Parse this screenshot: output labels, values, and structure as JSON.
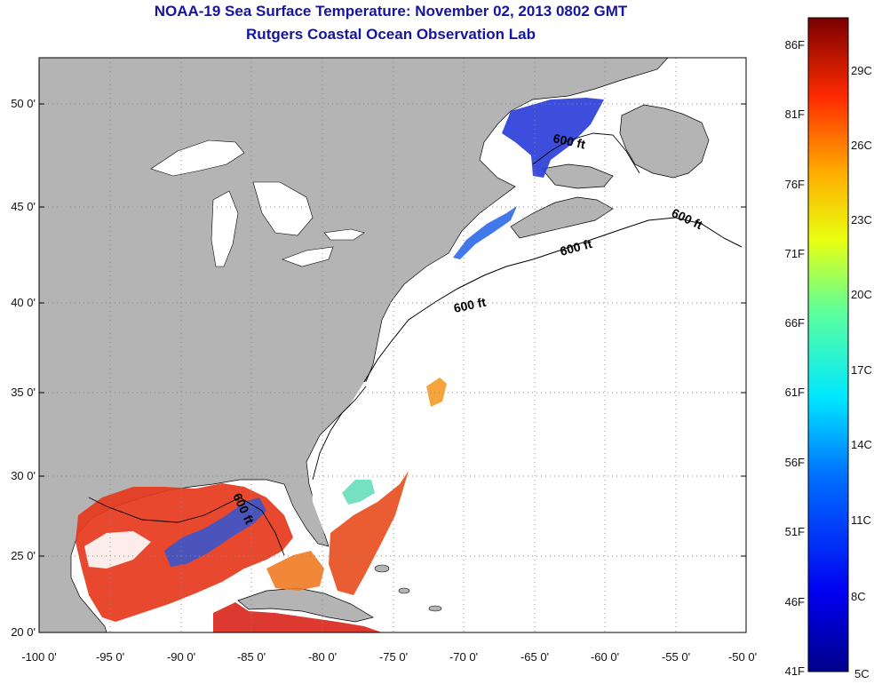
{
  "header": {
    "title": "NOAA-19 Sea Surface Temperature:  November 02, 2013 0802 GMT",
    "subtitle": "Rutgers Coastal Ocean Observation Lab"
  },
  "axes": {
    "lon_labels": [
      "-100 0'",
      "-95 0'",
      "-90 0'",
      "-85 0'",
      "-80 0'",
      "-75 0'",
      "-70 0'",
      "-65 0'",
      "-60 0'",
      "-55 0'",
      "-50 0'"
    ],
    "lat_labels": [
      "50 0'",
      "45 0'",
      "40 0'",
      "35 0'",
      "30 0'",
      "25 0'",
      "20 0'"
    ]
  },
  "contour_label": "600 ft",
  "colorbar": {
    "fahrenheit": [
      "86F",
      "81F",
      "76F",
      "71F",
      "66F",
      "61F",
      "56F",
      "51F",
      "46F",
      "41F"
    ],
    "celsius": [
      "29C",
      "26C",
      "23C",
      "20C",
      "17C",
      "14C",
      "11C",
      "8C",
      "5C"
    ]
  },
  "colors": {
    "land": "#b4b4b4",
    "title": "#1515a0",
    "warm": "#e8351a",
    "cold": "#1f3fd6"
  }
}
